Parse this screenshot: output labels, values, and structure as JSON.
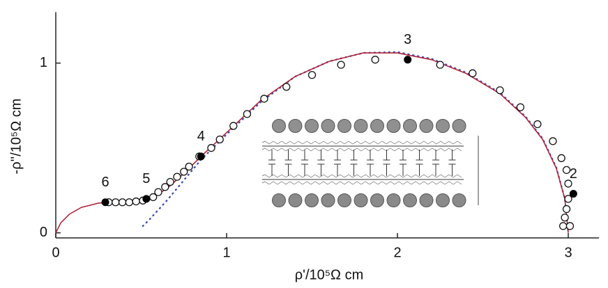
{
  "chart_data": {
    "type": "scatter",
    "x_label": "ρ'/10⁵Ω cm",
    "y_label": "-ρ''/10⁵Ω cm",
    "xlim": [
      0,
      3.18
    ],
    "ylim": [
      -0.03,
      1.3
    ],
    "xticks": [
      0,
      1,
      2,
      3
    ],
    "yticks": [
      0,
      1
    ],
    "series": [
      {
        "kind": "open-circles",
        "color": "#111111",
        "x": [
          0.31,
          0.35,
          0.39,
          0.43,
          0.47,
          0.51,
          0.57,
          0.6,
          0.64,
          0.67,
          0.71,
          0.75,
          0.78,
          0.84,
          0.91,
          0.96,
          1.04,
          1.12,
          1.22,
          1.35,
          1.5,
          1.67,
          1.87,
          2.25,
          2.44,
          2.6,
          2.72,
          2.82,
          2.91,
          2.96,
          2.99,
          3.0,
          3.0,
          2.99,
          2.98,
          2.97,
          3.01
        ],
        "values": [
          0.18,
          0.18,
          0.18,
          0.18,
          0.185,
          0.19,
          0.21,
          0.24,
          0.27,
          0.3,
          0.33,
          0.36,
          0.39,
          0.45,
          0.5,
          0.55,
          0.63,
          0.7,
          0.79,
          0.86,
          0.93,
          0.99,
          1.02,
          0.99,
          0.94,
          0.84,
          0.74,
          0.64,
          0.54,
          0.44,
          0.37,
          0.29,
          0.2,
          0.14,
          0.09,
          0.04,
          0.04
        ]
      },
      {
        "kind": "filled-circles",
        "color": "#000000",
        "x": [
          0.29,
          0.53,
          0.85,
          2.06,
          3.03
        ],
        "values": [
          0.18,
          0.2,
          0.45,
          1.02,
          0.23
        ],
        "point_labels": [
          "6",
          "5",
          "4",
          "3",
          "2"
        ]
      },
      {
        "kind": "line",
        "color": "#b0243a",
        "x": [
          0,
          0.03,
          0.08,
          0.15,
          0.25,
          0.35,
          0.45,
          0.55,
          0.65,
          0.75,
          0.85,
          1.0,
          1.2,
          1.4,
          1.6,
          1.8,
          2.0,
          2.2,
          2.4,
          2.6,
          2.75,
          2.85,
          2.93,
          2.98,
          3.0
        ],
        "values": [
          0,
          0.06,
          0.11,
          0.15,
          0.175,
          0.18,
          0.185,
          0.2,
          0.26,
          0.35,
          0.45,
          0.59,
          0.78,
          0.92,
          1.01,
          1.06,
          1.06,
          1.02,
          0.94,
          0.82,
          0.68,
          0.55,
          0.38,
          0.2,
          0.0
        ]
      },
      {
        "kind": "dotted",
        "color": "#3b4fb0",
        "x": [
          0.51,
          0.55,
          0.65,
          0.75,
          0.85,
          1.0,
          1.2,
          1.4,
          1.6,
          1.8,
          2.0,
          2.2,
          2.4,
          2.6,
          2.75,
          2.85,
          2.93,
          2.98,
          3.0
        ],
        "values": [
          0.04,
          0.08,
          0.19,
          0.31,
          0.43,
          0.58,
          0.77,
          0.92,
          1.01,
          1.06,
          1.065,
          1.025,
          0.945,
          0.825,
          0.685,
          0.555,
          0.385,
          0.2,
          0.0
        ]
      }
    ]
  }
}
